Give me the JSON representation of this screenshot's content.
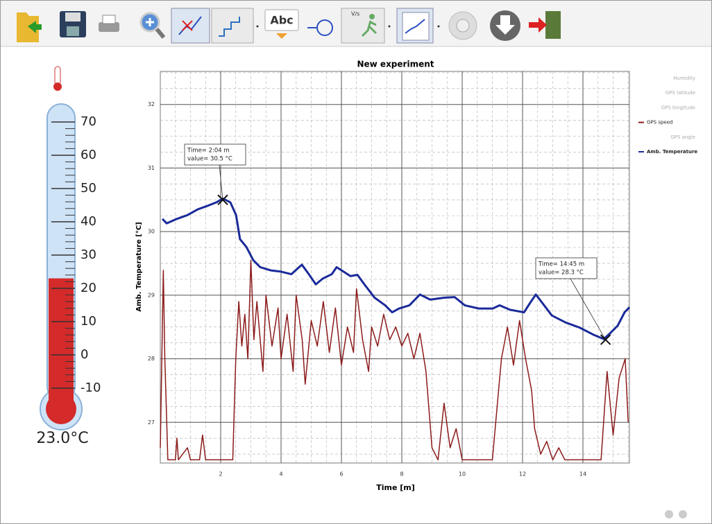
{
  "toolbar": {
    "text_button": "Abc",
    "speed_button": "V/s"
  },
  "thermometer": {
    "ticks": [
      70,
      60,
      50,
      40,
      30,
      20,
      10,
      0,
      -10
    ],
    "value": 23,
    "value_label": "23.0°C",
    "color": "#d42a2a"
  },
  "chart_data": {
    "type": "line",
    "title": "New experiment",
    "x_label": "Time [m]",
    "y_label": "Amb. Temperature [°C]",
    "xlim": [
      0,
      15.54
    ],
    "ylim": [
      26.36,
      32.52
    ],
    "xticks": [
      2,
      4,
      6,
      8,
      10,
      12,
      14
    ],
    "yticks": [
      27,
      28,
      29,
      30,
      31,
      32
    ],
    "grid": true,
    "minor_grid": true,
    "series": [
      {
        "name": "Humidity",
        "color": "#b0b0b0",
        "visible": false,
        "x": [],
        "values": []
      },
      {
        "name": "GPS latitude",
        "color": "#b0b0b0",
        "visible": false,
        "x": [],
        "values": []
      },
      {
        "name": "GPS longitude",
        "color": "#b0b0b0",
        "visible": false,
        "x": [],
        "values": []
      },
      {
        "name": "GPS speed",
        "color": "#8b1a1a",
        "visible": true,
        "x": [
          0.0,
          0.1,
          0.15,
          0.25,
          0.5,
          0.55,
          0.6,
          0.9,
          1.0,
          1.3,
          1.4,
          1.5,
          2.0,
          2.4,
          2.5,
          2.6,
          2.7,
          2.8,
          2.9,
          3.0,
          3.1,
          3.2,
          3.4,
          3.5,
          3.7,
          3.9,
          4.0,
          4.2,
          4.4,
          4.5,
          4.7,
          4.8,
          5.0,
          5.2,
          5.4,
          5.6,
          5.8,
          6.0,
          6.2,
          6.4,
          6.5,
          6.7,
          6.9,
          7.0,
          7.2,
          7.4,
          7.6,
          7.8,
          8.0,
          8.2,
          8.4,
          8.6,
          8.8,
          9.0,
          9.2,
          9.4,
          9.6,
          9.8,
          10.0,
          11.0,
          11.3,
          11.5,
          11.7,
          11.9,
          12.1,
          12.3,
          12.4,
          12.6,
          12.8,
          13.0,
          13.2,
          13.4,
          14.6,
          14.8,
          15.0,
          15.2,
          15.4,
          15.5
        ],
        "values": [
          26.6,
          29.39,
          28.0,
          26.41,
          26.41,
          26.75,
          26.41,
          26.6,
          26.41,
          26.41,
          26.8,
          26.41,
          26.41,
          26.41,
          28.0,
          28.9,
          28.2,
          28.7,
          28.0,
          29.55,
          28.3,
          28.9,
          27.8,
          29.0,
          28.2,
          28.8,
          28.0,
          28.7,
          27.8,
          29.0,
          28.3,
          27.6,
          28.6,
          28.2,
          28.9,
          28.1,
          28.8,
          27.9,
          28.5,
          28.1,
          29.1,
          28.3,
          27.8,
          28.5,
          28.2,
          28.7,
          28.3,
          28.5,
          28.2,
          28.4,
          28.0,
          28.4,
          27.8,
          26.6,
          26.41,
          27.3,
          26.6,
          26.9,
          26.41,
          26.41,
          28.0,
          28.5,
          27.9,
          28.6,
          28.0,
          27.5,
          26.9,
          26.5,
          26.7,
          26.41,
          26.6,
          26.41,
          26.41,
          27.8,
          26.8,
          27.7,
          28.0,
          27.0
        ]
      },
      {
        "name": "GPS angle",
        "color": "#b0b0b0",
        "visible": false,
        "x": [],
        "values": []
      },
      {
        "name": "Amb. Temperature",
        "color": "#1a2a9a",
        "visible": true,
        "x": [
          0.07,
          0.21,
          0.55,
          0.9,
          1.24,
          1.59,
          1.86,
          2.07,
          2.32,
          2.51,
          2.64,
          2.85,
          3.08,
          3.31,
          3.66,
          4.0,
          4.34,
          4.69,
          4.92,
          5.15,
          5.38,
          5.68,
          5.84,
          6.07,
          6.3,
          6.53,
          6.76,
          7.1,
          7.45,
          7.68,
          7.91,
          8.25,
          8.6,
          8.94,
          9.4,
          9.75,
          10.09,
          10.55,
          11.01,
          11.24,
          11.59,
          12.05,
          12.28,
          12.44,
          12.62,
          12.97,
          13.43,
          13.89,
          14.34,
          14.69,
          14.92,
          15.15,
          15.38,
          15.54
        ],
        "values": [
          30.2,
          30.13,
          30.2,
          30.26,
          30.35,
          30.41,
          30.46,
          30.52,
          30.46,
          30.26,
          29.88,
          29.76,
          29.55,
          29.44,
          29.39,
          29.37,
          29.33,
          29.48,
          29.33,
          29.17,
          29.26,
          29.33,
          29.44,
          29.37,
          29.3,
          29.32,
          29.17,
          28.96,
          28.84,
          28.73,
          28.79,
          28.84,
          29.01,
          28.93,
          28.96,
          28.97,
          28.84,
          28.79,
          28.79,
          28.84,
          28.77,
          28.73,
          28.9,
          29.01,
          28.9,
          28.68,
          28.57,
          28.49,
          28.38,
          28.31,
          28.41,
          28.52,
          28.73,
          28.81
        ]
      }
    ],
    "annotations": [
      {
        "x": 2.07,
        "y": 30.5,
        "lines": [
          "Time= 2:04 m",
          "value= 30.5 °C"
        ]
      },
      {
        "x": 14.75,
        "y": 28.3,
        "lines": [
          "Time= 14:45 m",
          "value= 28.3 °C"
        ]
      }
    ]
  }
}
